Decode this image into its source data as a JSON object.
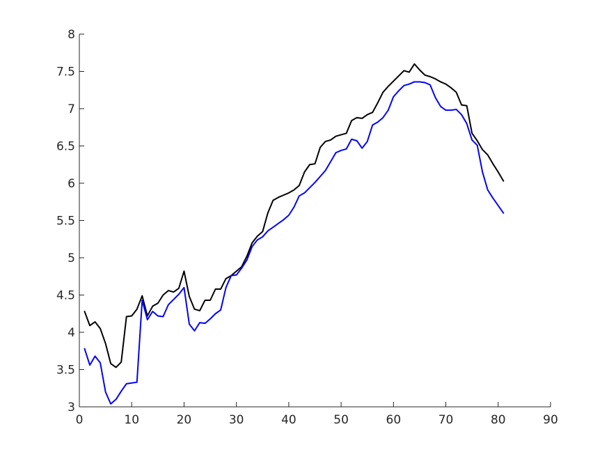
{
  "chart_data": {
    "type": "line",
    "title": "",
    "xlabel": "",
    "ylabel": "",
    "xlim": [
      0,
      90
    ],
    "ylim": [
      3,
      8
    ],
    "xticks": [
      0,
      10,
      20,
      30,
      40,
      50,
      60,
      70,
      80,
      90
    ],
    "yticks": [
      3,
      3.5,
      4,
      4.5,
      5,
      5.5,
      6,
      6.5,
      7,
      7.5,
      8
    ],
    "xtick_labels": [
      "0",
      "10",
      "20",
      "30",
      "40",
      "50",
      "60",
      "70",
      "80",
      "90"
    ],
    "ytick_labels": [
      "3",
      "3.5",
      "4",
      "4.5",
      "5",
      "5.5",
      "6",
      "6.5",
      "7",
      "7.5",
      "8"
    ],
    "grid": false,
    "legend": "none",
    "x": [
      1,
      2,
      3,
      4,
      5,
      6,
      7,
      8,
      9,
      10,
      11,
      12,
      13,
      14,
      15,
      16,
      17,
      18,
      19,
      20,
      21,
      22,
      23,
      24,
      25,
      26,
      27,
      28,
      29,
      30,
      31,
      32,
      33,
      34,
      35,
      36,
      37,
      38,
      39,
      40,
      41,
      42,
      43,
      44,
      45,
      46,
      47,
      48,
      49,
      50,
      51,
      52,
      53,
      54,
      55,
      56,
      57,
      58,
      59,
      60,
      61,
      62,
      63,
      64,
      65,
      66,
      67,
      68,
      69,
      70,
      71,
      72,
      73,
      74,
      75,
      76,
      77,
      78,
      79,
      80,
      81
    ],
    "series": [
      {
        "color": "#000000",
        "values": [
          4.28,
          4.09,
          4.14,
          4.05,
          3.85,
          3.58,
          3.53,
          3.6,
          4.21,
          4.22,
          4.31,
          4.49,
          4.22,
          4.35,
          4.39,
          4.5,
          4.56,
          4.54,
          4.59,
          4.82,
          4.48,
          4.31,
          4.29,
          4.43,
          4.43,
          4.58,
          4.58,
          4.72,
          4.76,
          4.82,
          4.88,
          5.02,
          5.2,
          5.29,
          5.35,
          5.6,
          5.77,
          5.81,
          5.84,
          5.87,
          5.91,
          5.97,
          6.15,
          6.25,
          6.26,
          6.48,
          6.56,
          6.58,
          6.63,
          6.65,
          6.67,
          6.84,
          6.88,
          6.87,
          6.92,
          6.95,
          7.08,
          7.22,
          7.3,
          7.37,
          7.44,
          7.51,
          7.49,
          7.6,
          7.52,
          7.45,
          7.43,
          7.4,
          7.36,
          7.33,
          7.28,
          7.22,
          7.05,
          7.04,
          6.67,
          6.57,
          6.45,
          6.38,
          6.26,
          6.15,
          6.03
        ]
      },
      {
        "color": "#0000ff",
        "values": [
          3.78,
          3.56,
          3.68,
          3.59,
          3.2,
          3.04,
          3.1,
          3.21,
          3.31,
          3.32,
          3.33,
          4.43,
          4.17,
          4.28,
          4.22,
          4.21,
          4.37,
          4.44,
          4.51,
          4.6,
          4.11,
          4.02,
          4.13,
          4.12,
          4.18,
          4.25,
          4.3,
          4.6,
          4.76,
          4.77,
          4.86,
          4.97,
          5.15,
          5.24,
          5.28,
          5.36,
          5.41,
          5.46,
          5.51,
          5.57,
          5.68,
          5.83,
          5.87,
          5.94,
          6.01,
          6.09,
          6.17,
          6.29,
          6.41,
          6.44,
          6.46,
          6.59,
          6.57,
          6.47,
          6.56,
          6.78,
          6.82,
          6.88,
          6.98,
          7.16,
          7.24,
          7.31,
          7.33,
          7.36,
          7.36,
          7.35,
          7.32,
          7.15,
          7.03,
          6.98,
          6.98,
          6.99,
          6.92,
          6.8,
          6.58,
          6.51,
          6.15,
          5.91,
          5.8,
          5.7,
          5.6
        ]
      }
    ]
  }
}
